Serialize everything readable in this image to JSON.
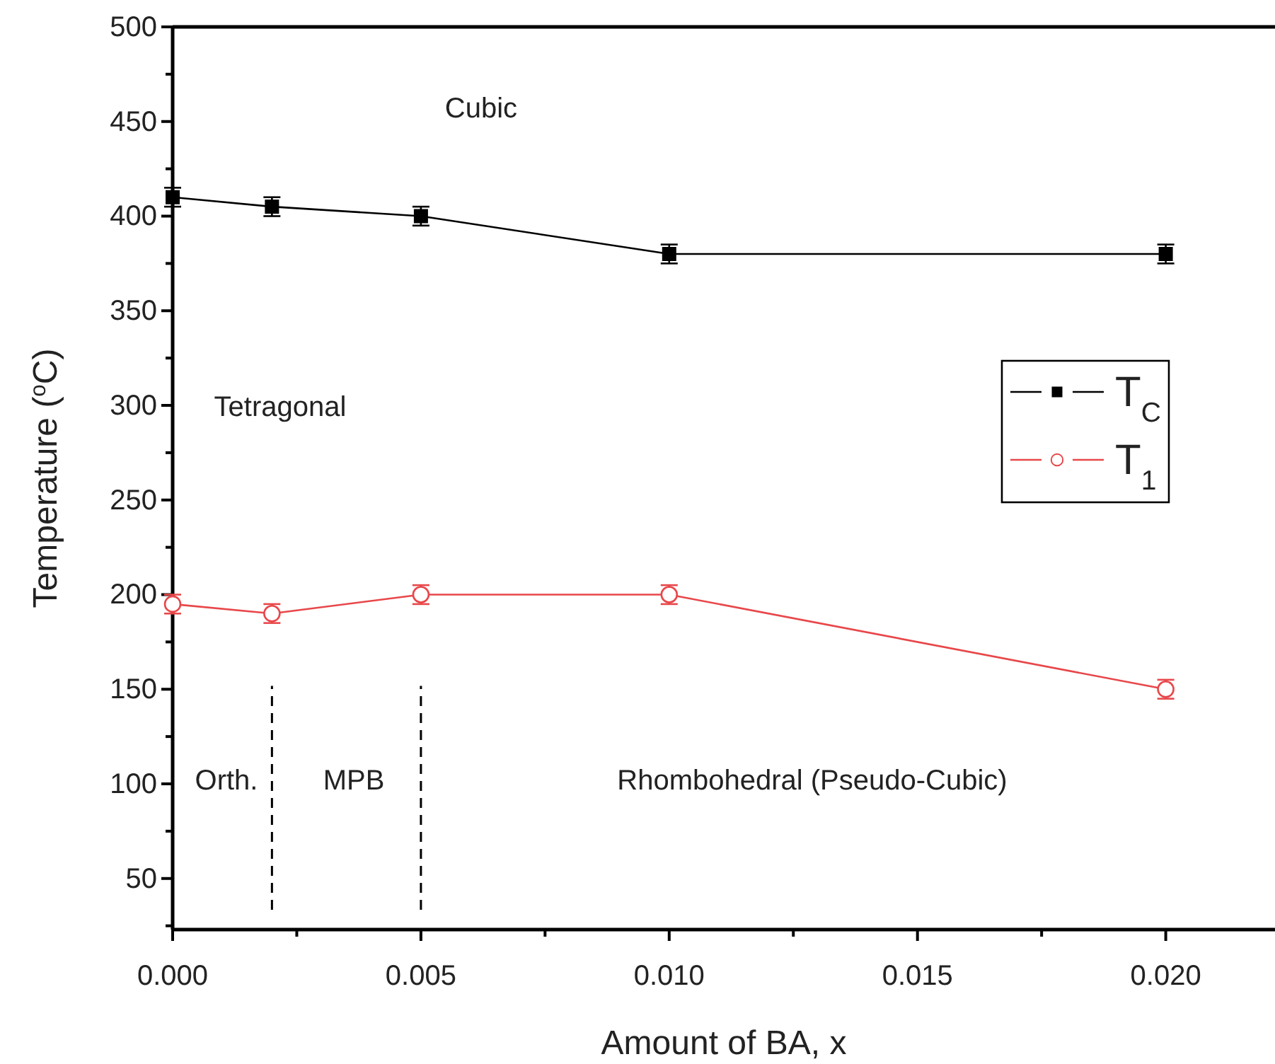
{
  "chart_data": {
    "type": "line",
    "xlabel": "Amount of BA, x",
    "ylabel": "Temperature ($^{o}$C)",
    "x": [
      0,
      0.002,
      0.005,
      0.01,
      0.02
    ],
    "xlim": [
      0,
      0.0222
    ],
    "ylim": [
      23,
      500
    ],
    "xticks": [
      {
        "value": 0,
        "label": "0.000"
      },
      {
        "value": 0.005,
        "label": "0.005"
      },
      {
        "value": 0.01,
        "label": "0.010"
      },
      {
        "value": 0.015,
        "label": "0.015"
      },
      {
        "value": 0.02,
        "label": "0.020"
      }
    ],
    "yticks": [
      50,
      100,
      150,
      200,
      250,
      300,
      350,
      400,
      450,
      500
    ],
    "series": [
      {
        "name": "T$_{C}$",
        "color": "#000000",
        "marker": "square",
        "values": [
          410,
          405,
          400,
          380,
          380
        ],
        "errors": [
          5,
          5,
          5,
          5,
          5
        ]
      },
      {
        "name": "T$_{1}$",
        "color": "#e8474a",
        "marker": "circle",
        "values": [
          195,
          190,
          200,
          200,
          150
        ],
        "errors": [
          5,
          5,
          5,
          5,
          5
        ]
      }
    ],
    "ref_lines": [
      {
        "axis": "x",
        "value": 0.002,
        "line_style": "dashed",
        "color": "#000000"
      },
      {
        "axis": "x",
        "value": 0.005,
        "line_style": "dashed",
        "color": "#000000"
      }
    ],
    "annotations": [
      "Cubic",
      "Tetragonal",
      "Orth.",
      "MPB",
      "Rhombohedral (Pseudo-Cubic)"
    ],
    "legend": "right",
    "grid": false,
    "line_style": "solid"
  }
}
